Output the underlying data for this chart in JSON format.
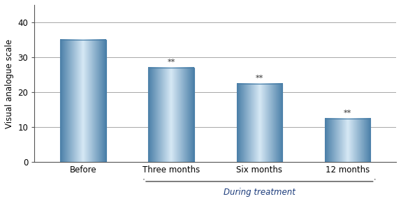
{
  "categories": [
    "Before",
    "Three months",
    "Six months",
    "12 months"
  ],
  "values": [
    35,
    27,
    22.5,
    12.5
  ],
  "bar_edge_color": "#4a7fa8",
  "bar_center_color": "#d6e8f5",
  "bar_mid_color": "#7fb3d3",
  "ylabel": "Visual analogue scale",
  "ylim": [
    0,
    45
  ],
  "yticks": [
    0,
    10,
    20,
    30,
    40
  ],
  "annotations": [
    "",
    "**",
    "**",
    "**"
  ],
  "bracket_label": "During treatment",
  "label_fontsize": 8.5,
  "tick_fontsize": 8.5,
  "annot_fontsize": 8,
  "bracket_fontsize": 8.5,
  "bar_width": 0.52,
  "grid_color": "#999999",
  "text_color": "#1a3a7a",
  "spine_color": "#555555"
}
